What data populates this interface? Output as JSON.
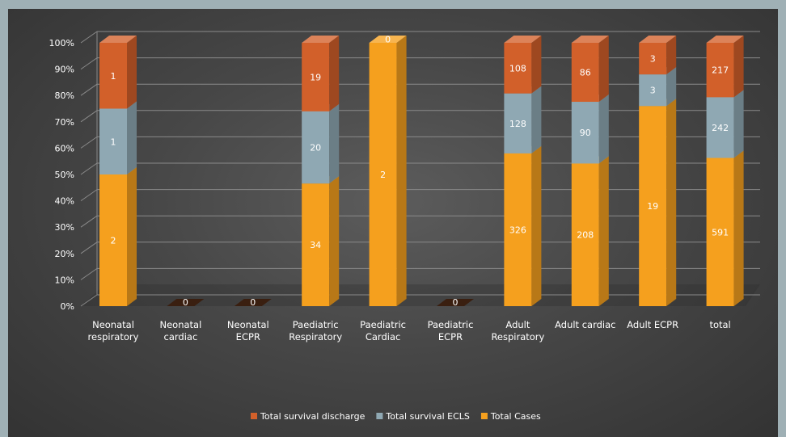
{
  "chart_data": {
    "type": "bar",
    "stacked": "percent",
    "three_d": true,
    "categories": [
      [
        "Neonatal",
        "respiratory"
      ],
      [
        "Neonatal",
        "cardiac"
      ],
      [
        "Neonatal",
        "ECPR"
      ],
      [
        "Paediatric",
        "Respiratory"
      ],
      [
        "Paediatric",
        "Cardiac"
      ],
      [
        "Paediatric",
        "ECPR"
      ],
      [
        "Adult",
        "Respiratory"
      ],
      [
        "Adult cardiac"
      ],
      [
        "Adult ECPR"
      ],
      [
        "total"
      ]
    ],
    "series": [
      {
        "name": "Total Cases",
        "color": "#f5a01e",
        "values": [
          2,
          0,
          0,
          34,
          2,
          0,
          326,
          208,
          19,
          591
        ]
      },
      {
        "name": "Total survival ECLS",
        "color": "#8fa8b3",
        "values": [
          1,
          0,
          0,
          20,
          0,
          0,
          128,
          90,
          3,
          242
        ]
      },
      {
        "name": "Total survival discharge",
        "color": "#d2602a",
        "values": [
          1,
          0,
          0,
          19,
          0,
          0,
          108,
          86,
          3,
          217
        ]
      }
    ],
    "empty_value_labels": [
      "",
      "0",
      "0",
      "",
      "0",
      "0",
      "",
      "",
      "",
      ""
    ],
    "y_ticks": [
      "0%",
      "10%",
      "20%",
      "30%",
      "40%",
      "50%",
      "60%",
      "70%",
      "80%",
      "90%",
      "100%"
    ],
    "ylim": [
      0,
      100
    ],
    "grid": true,
    "legend_position": "bottom",
    "legend_order": [
      "Total survival discharge",
      "Total survival ECLS",
      "Total Cases"
    ]
  }
}
